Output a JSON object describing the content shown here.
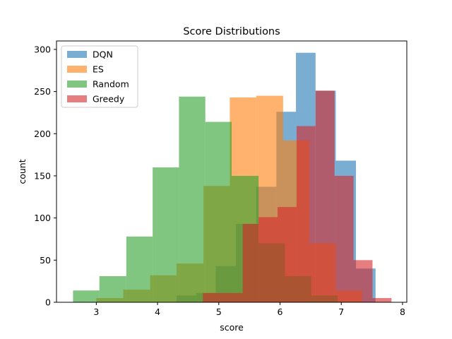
{
  "chart_data": {
    "type": "histogram",
    "title": "Score Distributions",
    "xlabel": "score",
    "ylabel": "count",
    "xlim": [
      2.35,
      8.07
    ],
    "ylim": [
      0,
      310
    ],
    "x_ticks": [
      3,
      4,
      5,
      6,
      7,
      8
    ],
    "y_ticks": [
      0,
      50,
      100,
      150,
      200,
      250,
      300
    ],
    "grid": false,
    "legend_position": "upper-left",
    "alpha": 0.6,
    "series": [
      {
        "name": "DQN",
        "color": "#1f77b4",
        "bins": [
          {
            "x0": 4.31,
            "x1": 4.63,
            "count": 8
          },
          {
            "x0": 4.63,
            "x1": 4.95,
            "count": 11
          },
          {
            "x0": 4.95,
            "x1": 5.28,
            "count": 43
          },
          {
            "x0": 5.28,
            "x1": 5.61,
            "count": 93
          },
          {
            "x0": 5.61,
            "x1": 5.94,
            "count": 137
          },
          {
            "x0": 5.94,
            "x1": 6.26,
            "count": 226
          },
          {
            "x0": 6.26,
            "x1": 6.58,
            "count": 296
          },
          {
            "x0": 6.58,
            "x1": 6.91,
            "count": 251
          },
          {
            "x0": 6.91,
            "x1": 7.24,
            "count": 168
          },
          {
            "x0": 7.24,
            "x1": 7.56,
            "count": 40
          }
        ]
      },
      {
        "name": "ES",
        "color": "#ff7f0e",
        "bins": [
          {
            "x0": 3.0,
            "x1": 3.44,
            "count": 5
          },
          {
            "x0": 3.44,
            "x1": 3.88,
            "count": 15
          },
          {
            "x0": 3.88,
            "x1": 4.31,
            "count": 32
          },
          {
            "x0": 4.31,
            "x1": 4.75,
            "count": 46
          },
          {
            "x0": 4.75,
            "x1": 5.18,
            "count": 138
          },
          {
            "x0": 5.18,
            "x1": 5.61,
            "count": 243
          },
          {
            "x0": 5.61,
            "x1": 6.05,
            "count": 245
          },
          {
            "x0": 6.05,
            "x1": 6.48,
            "count": 192
          },
          {
            "x0": 6.48,
            "x1": 6.91,
            "count": 70
          },
          {
            "x0": 6.91,
            "x1": 7.34,
            "count": 14
          }
        ]
      },
      {
        "name": "Random",
        "color": "#2ca02c",
        "bins": [
          {
            "x0": 2.62,
            "x1": 3.05,
            "count": 14
          },
          {
            "x0": 3.05,
            "x1": 3.49,
            "count": 31
          },
          {
            "x0": 3.49,
            "x1": 3.92,
            "count": 78
          },
          {
            "x0": 3.92,
            "x1": 4.35,
            "count": 160
          },
          {
            "x0": 4.35,
            "x1": 4.78,
            "count": 244
          },
          {
            "x0": 4.78,
            "x1": 5.21,
            "count": 214
          },
          {
            "x0": 5.21,
            "x1": 5.65,
            "count": 150
          },
          {
            "x0": 5.65,
            "x1": 6.08,
            "count": 70
          },
          {
            "x0": 6.08,
            "x1": 6.51,
            "count": 31
          },
          {
            "x0": 6.51,
            "x1": 6.94,
            "count": 8
          }
        ]
      },
      {
        "name": "Greedy",
        "color": "#d62728",
        "bins": [
          {
            "x0": 4.74,
            "x1": 5.39,
            "count": 11
          },
          {
            "x0": 5.39,
            "x1": 5.65,
            "count": 93
          },
          {
            "x0": 5.65,
            "x1": 5.96,
            "count": 101
          },
          {
            "x0": 5.96,
            "x1": 6.27,
            "count": 113
          },
          {
            "x0": 6.27,
            "x1": 6.58,
            "count": 209
          },
          {
            "x0": 6.58,
            "x1": 6.89,
            "count": 251
          },
          {
            "x0": 6.89,
            "x1": 7.2,
            "count": 150
          },
          {
            "x0": 7.2,
            "x1": 7.51,
            "count": 50
          },
          {
            "x0": 7.51,
            "x1": 7.82,
            "count": 5
          }
        ]
      }
    ]
  }
}
